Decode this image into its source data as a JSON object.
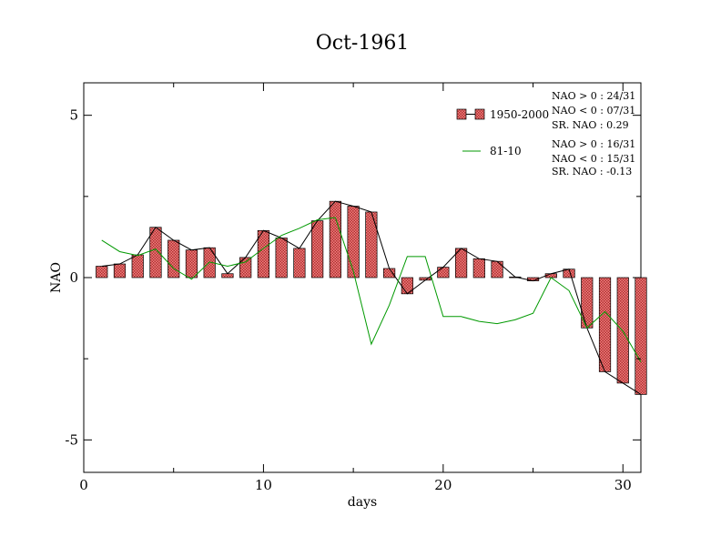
{
  "chart_data": {
    "type": "bar",
    "title": "Oct-1961",
    "xlabel": "days",
    "ylabel": "NAO",
    "xlim": [
      0,
      31
    ],
    "ylim": [
      -6,
      6
    ],
    "xticks": [
      0,
      10,
      20,
      30
    ],
    "yticks": [
      -5,
      0,
      5
    ],
    "xtick_labels": [
      "0",
      "10",
      "20",
      "30"
    ],
    "ytick_labels": [
      "-5",
      "0",
      "5"
    ],
    "grid": false,
    "legend_position": "top-right",
    "x": [
      1,
      2,
      3,
      4,
      5,
      6,
      7,
      8,
      9,
      10,
      11,
      12,
      13,
      14,
      15,
      16,
      17,
      18,
      19,
      20,
      21,
      22,
      23,
      24,
      25,
      26,
      27,
      28,
      29,
      30,
      31
    ],
    "series": [
      {
        "name": "1950-2000",
        "kind": "bar",
        "color": "#f08080",
        "values": [
          0.35,
          0.42,
          0.7,
          1.55,
          1.15,
          0.85,
          0.92,
          0.12,
          0.62,
          1.45,
          1.22,
          0.9,
          1.75,
          2.35,
          2.2,
          2.02,
          0.28,
          -0.5,
          -0.08,
          0.32,
          0.9,
          0.58,
          0.5,
          0.02,
          -0.1,
          0.12,
          0.26,
          -1.55,
          -2.9,
          -3.25,
          -3.6
        ]
      },
      {
        "name": "81-10",
        "kind": "line",
        "color": "#009900",
        "values": [
          1.15,
          0.8,
          0.68,
          0.88,
          0.28,
          -0.05,
          0.48,
          0.35,
          0.48,
          0.9,
          1.3,
          1.52,
          1.78,
          1.85,
          0.2,
          -2.05,
          -0.85,
          0.65,
          0.65,
          -1.2,
          -1.2,
          -1.35,
          -1.42,
          -1.3,
          -1.1,
          0.0,
          -0.4,
          -1.55,
          -1.05,
          -1.65,
          -2.6
        ]
      }
    ],
    "annotations": {
      "group1": [
        "NAO > 0 : 24/31",
        "NAO < 0 : 07/31",
        "SR. NAO :  0.29"
      ],
      "group2": [
        "NAO > 0 : 16/31",
        "NAO < 0 : 15/31",
        "SR. NAO : -0.13"
      ]
    }
  }
}
